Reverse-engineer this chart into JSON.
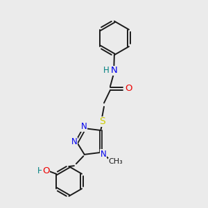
{
  "background_color": "#ebebeb",
  "bond_color": "#1a1a1a",
  "n_color": "#0000ee",
  "o_color": "#ee0000",
  "s_color": "#cccc00",
  "h_color": "#008080",
  "figsize": [
    3.0,
    3.0
  ],
  "dpi": 100,
  "xlim": [
    0,
    10
  ],
  "ylim": [
    0,
    10
  ]
}
